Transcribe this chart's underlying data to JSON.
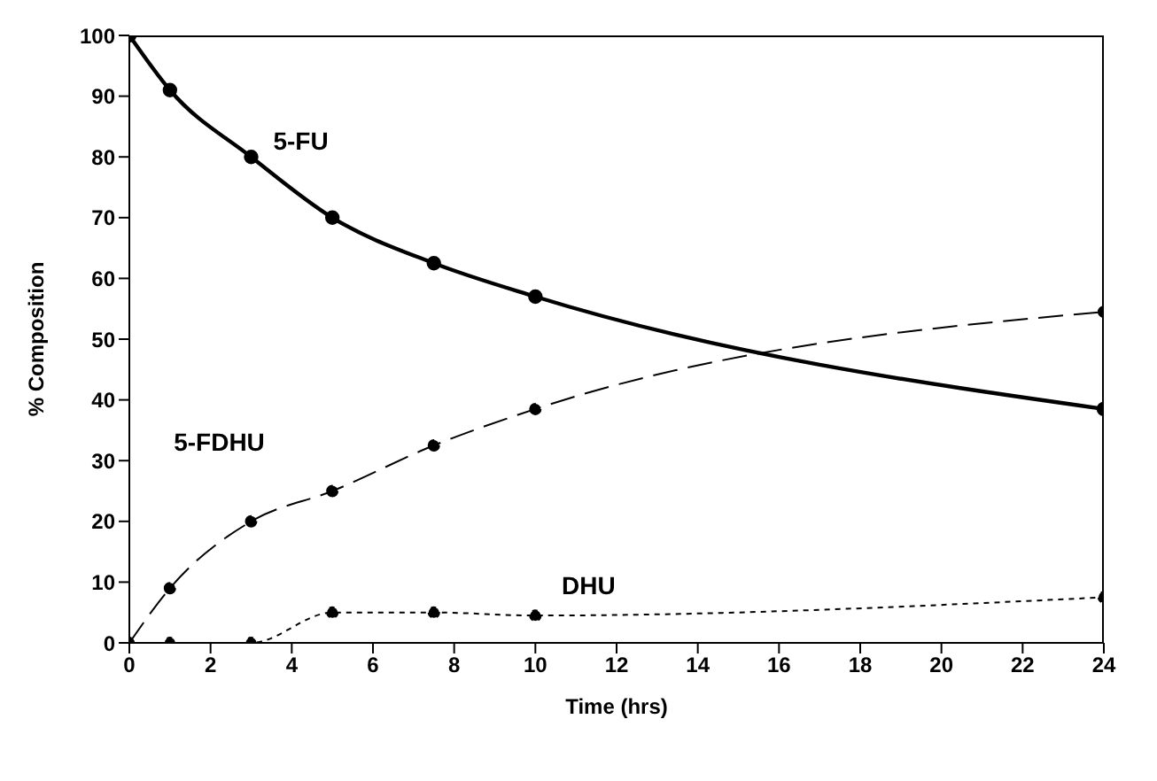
{
  "chart_data": {
    "type": "line",
    "xlabel": "Time (hrs)",
    "ylabel": "% Composition",
    "x": [
      0,
      1,
      3,
      5,
      7.5,
      10,
      24
    ],
    "xlim": [
      0,
      24
    ],
    "xticks": [
      0,
      2,
      4,
      6,
      8,
      10,
      12,
      14,
      16,
      18,
      20,
      22,
      24
    ],
    "ylim": [
      0,
      100
    ],
    "yticks": [
      0,
      10,
      20,
      30,
      40,
      50,
      60,
      70,
      80,
      90,
      100
    ],
    "grid": false,
    "legend": false,
    "marker": "circle",
    "series": [
      {
        "name": "5-FU",
        "color": "#000000",
        "line_style": "solid",
        "values": [
          100,
          91,
          80,
          70,
          62.5,
          57,
          38.5
        ]
      },
      {
        "name": "5-FDHU",
        "color": "#000000",
        "line_style": "dashed",
        "values": [
          0,
          9,
          20,
          25,
          32.5,
          38.5,
          54.5
        ]
      },
      {
        "name": "DHU",
        "color": "#000000",
        "line_style": "dotted",
        "values": [
          0,
          0,
          0,
          5,
          5,
          4.5,
          7.5
        ]
      }
    ]
  }
}
